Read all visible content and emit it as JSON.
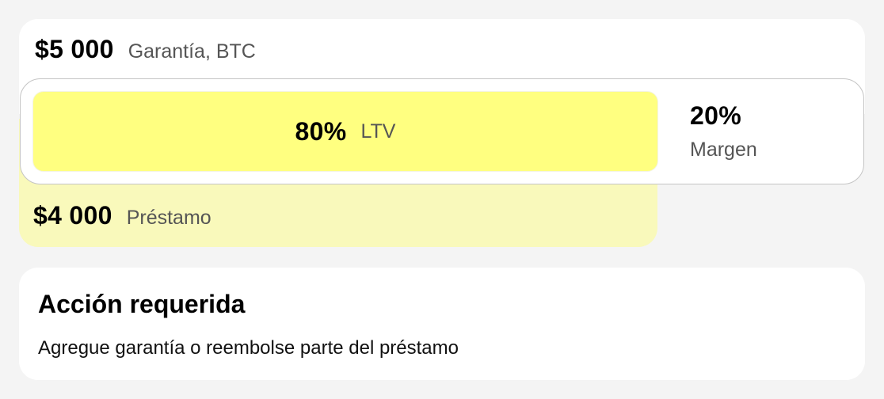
{
  "collateral": {
    "amount": "$5 000",
    "label": "Garantía, BTC"
  },
  "ltv": {
    "value": "80%",
    "label": "LTV",
    "percent": 80,
    "color": "#ffff80"
  },
  "margin": {
    "value": "20%",
    "label": "Margen"
  },
  "loan": {
    "amount": "$4 000",
    "label": "Préstamo",
    "color": "#f9f9bb"
  },
  "action": {
    "title": "Acción requerida",
    "text": "Agregue garantía o reembolse parte del préstamo"
  }
}
